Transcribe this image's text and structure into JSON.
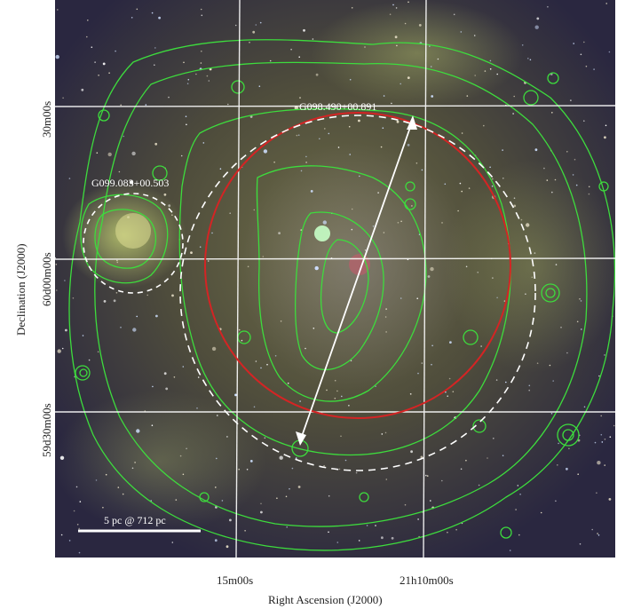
{
  "axes": {
    "xlabel": "Right Ascension (J2000)",
    "ylabel": "Declination (J2000)",
    "x_ticks": [
      "15m00s",
      "21h10m00s"
    ],
    "y_ticks": [
      "30m00s",
      "60d00m00s",
      "59d30m00s"
    ]
  },
  "annotations": {
    "source_upper": "G098.490+00.891",
    "source_left": "G099.083+00.503",
    "scale_bar": "5 pc @ 712 pc"
  },
  "colors": {
    "contours": "#3ddc3d",
    "red_circle": "#d42424",
    "dashed_circles": "#ffffff",
    "grid": "#ffffff",
    "arrow": "#ffffff"
  }
}
